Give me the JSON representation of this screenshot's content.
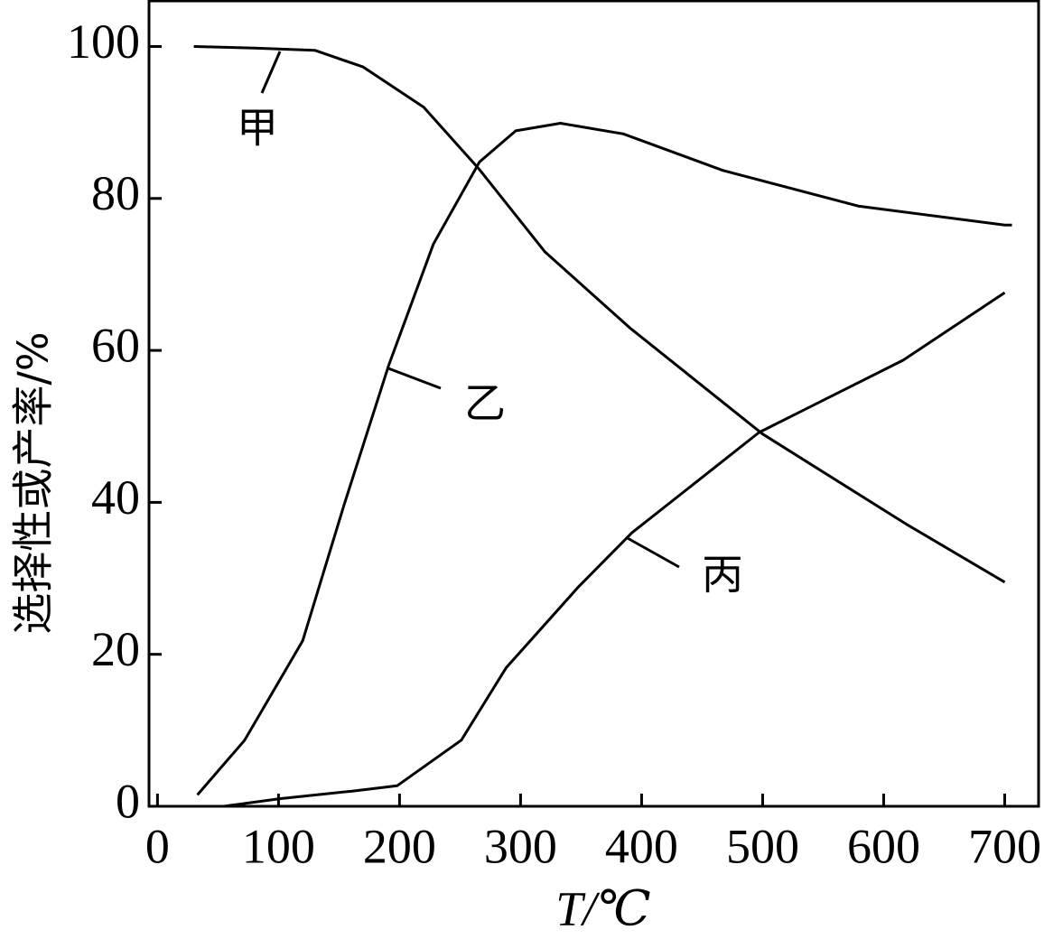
{
  "chart_data": {
    "type": "line",
    "x_label": "T/℃",
    "y_label": "选择性或产率/%",
    "xlim": [
      -7,
      728
    ],
    "xticks": [
      0,
      100,
      200,
      300,
      400,
      500,
      600,
      700
    ],
    "ylim": [
      0,
      106
    ],
    "yticks": [
      0,
      20,
      40,
      60,
      80,
      100
    ],
    "color": "#000000",
    "series": [
      {
        "name": "甲",
        "x": [
          30,
          80,
          130,
          170,
          220,
          265,
          320,
          390,
          500,
          620,
          700
        ],
        "values": [
          100,
          99.8,
          99.5,
          97.3,
          92,
          84,
          73,
          63,
          49,
          37,
          29.5
        ]
      },
      {
        "name": "乙",
        "x": [
          33,
          72,
          120,
          154,
          191,
          228,
          266,
          296,
          333,
          385,
          467,
          579,
          700,
          706
        ],
        "values": [
          1.5,
          8.7,
          21.8,
          39.6,
          58,
          74,
          84.8,
          88.9,
          89.9,
          88.5,
          83.7,
          79,
          76.5,
          76.5
        ]
      },
      {
        "name": "丙",
        "x": [
          55,
          101,
          161,
          198,
          251,
          288,
          348,
          392,
          497,
          616,
          700
        ],
        "values": [
          0,
          1,
          2,
          2.7,
          8.7,
          18.2,
          28.9,
          36,
          49.2,
          58.7,
          67.6
        ]
      }
    ]
  }
}
